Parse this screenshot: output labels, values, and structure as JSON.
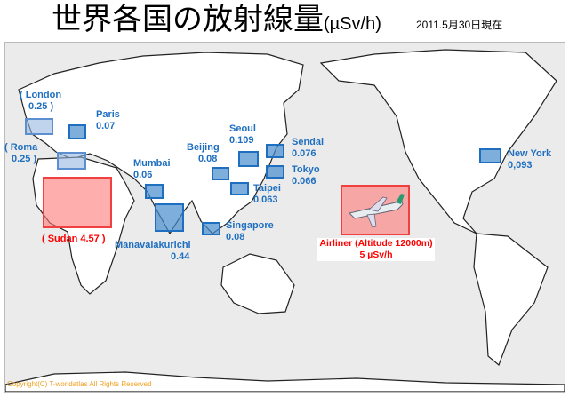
{
  "title": {
    "main": "世界各国の放射線量",
    "unit": "(µSv/h)",
    "date": "2011.5月30日現在"
  },
  "colors": {
    "marker": "#1f6fc0",
    "highlight": "#f04040",
    "land": "#ffffff",
    "sea": "#ebebeb"
  },
  "locations": [
    {
      "name": "( London",
      "value": "0.25 )"
    },
    {
      "name": "Paris",
      "value": "0.07"
    },
    {
      "name": "( Roma",
      "value": "0.25 )"
    },
    {
      "name": "( Sudan 4.57 )",
      "value": ""
    },
    {
      "name": "Mumbai",
      "value": "0.06"
    },
    {
      "name": "Manavalakurichi",
      "value": "0.44"
    },
    {
      "name": "Beijing",
      "value": "0.08"
    },
    {
      "name": "Seoul",
      "value": "0.109"
    },
    {
      "name": "Sendai",
      "value": "0.076"
    },
    {
      "name": "Tokyo",
      "value": "0.066"
    },
    {
      "name": "Taipei",
      "value": "0.063"
    },
    {
      "name": "Singapore",
      "value": "0.08"
    },
    {
      "name": "New York",
      "value": "0,093"
    }
  ],
  "airliner": {
    "label": "Airliner (Altitude 12000m)",
    "value": "5 µSv/h",
    "icon": "airplane-icon"
  },
  "copyright": "Copyright(C) T-worldatlas All Rights Reserved"
}
